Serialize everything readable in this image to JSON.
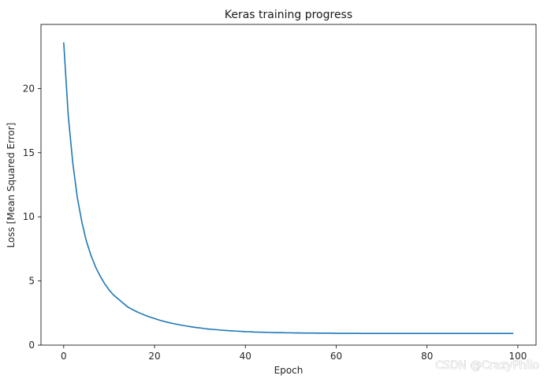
{
  "chart_data": {
    "type": "line",
    "title": "Keras training progress",
    "xlabel": "Epoch",
    "ylabel": "Loss [Mean Squared Error]",
    "xlim": [
      -5,
      104
    ],
    "ylim": [
      0,
      25
    ],
    "xticks": [
      0,
      20,
      40,
      60,
      80,
      100
    ],
    "yticks": [
      0,
      5,
      10,
      15,
      20
    ],
    "grid": false,
    "series": [
      {
        "color": "#1f77b4",
        "x": [
          0,
          1,
          2,
          3,
          4,
          5,
          6,
          7,
          8,
          9,
          10,
          11,
          12,
          13,
          14,
          15,
          16,
          17,
          18,
          19,
          20,
          21,
          22,
          23,
          24,
          25,
          26,
          27,
          28,
          29,
          30,
          31,
          32,
          33,
          34,
          35,
          36,
          37,
          38,
          39,
          40,
          41,
          42,
          43,
          44,
          45,
          46,
          47,
          48,
          49,
          50,
          51,
          52,
          53,
          54,
          55,
          56,
          57,
          58,
          59,
          60,
          61,
          62,
          63,
          64,
          65,
          66,
          67,
          68,
          69,
          70,
          71,
          72,
          73,
          74,
          75,
          76,
          77,
          78,
          79,
          80,
          81,
          82,
          83,
          84,
          85,
          86,
          87,
          88,
          89,
          90,
          91,
          92,
          93,
          94,
          95,
          96,
          97,
          98,
          99
        ],
        "y": [
          23.6,
          17.9,
          14.2,
          11.5,
          9.6,
          8.1,
          7.0,
          6.1,
          5.4,
          4.8,
          4.3,
          3.9,
          3.6,
          3.3,
          3.0,
          2.8,
          2.62,
          2.46,
          2.32,
          2.19,
          2.07,
          1.96,
          1.86,
          1.77,
          1.69,
          1.62,
          1.55,
          1.49,
          1.43,
          1.38,
          1.34,
          1.29,
          1.25,
          1.22,
          1.19,
          1.16,
          1.13,
          1.11,
          1.09,
          1.07,
          1.05,
          1.04,
          1.02,
          1.01,
          1.0,
          0.99,
          0.98,
          0.97,
          0.97,
          0.96,
          0.96,
          0.95,
          0.95,
          0.94,
          0.94,
          0.94,
          0.93,
          0.93,
          0.93,
          0.93,
          0.92,
          0.92,
          0.92,
          0.92,
          0.92,
          0.92,
          0.91,
          0.91,
          0.91,
          0.91,
          0.91,
          0.91,
          0.91,
          0.91,
          0.91,
          0.91,
          0.91,
          0.91,
          0.91,
          0.91,
          0.91,
          0.91,
          0.91,
          0.91,
          0.91,
          0.91,
          0.91,
          0.91,
          0.91,
          0.91,
          0.91,
          0.91,
          0.91,
          0.91,
          0.91,
          0.91,
          0.91,
          0.91,
          0.91,
          0.91
        ]
      }
    ]
  },
  "watermark": "CSDN @CrazyPhilo"
}
